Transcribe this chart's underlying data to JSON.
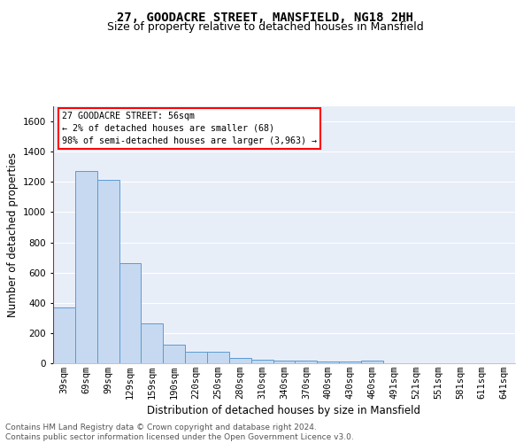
{
  "title": "27, GOODACRE STREET, MANSFIELD, NG18 2HH",
  "subtitle": "Size of property relative to detached houses in Mansfield",
  "xlabel": "Distribution of detached houses by size in Mansfield",
  "ylabel": "Number of detached properties",
  "categories": [
    "39sqm",
    "69sqm",
    "99sqm",
    "129sqm",
    "159sqm",
    "190sqm",
    "220sqm",
    "250sqm",
    "280sqm",
    "310sqm",
    "340sqm",
    "370sqm",
    "400sqm",
    "430sqm",
    "460sqm",
    "491sqm",
    "521sqm",
    "551sqm",
    "581sqm",
    "611sqm",
    "641sqm"
  ],
  "values": [
    370,
    1270,
    1215,
    665,
    265,
    125,
    75,
    75,
    35,
    22,
    18,
    15,
    13,
    12,
    20,
    0,
    0,
    0,
    0,
    0,
    0
  ],
  "bar_color": "#c6d9f0",
  "bar_edge_color": "#5b9bd5",
  "annotation_lines": [
    "27 GOODACRE STREET: 56sqm",
    "← 2% of detached houses are smaller (68)",
    "98% of semi-detached houses are larger (3,963) →"
  ],
  "ylim": [
    0,
    1700
  ],
  "yticks": [
    0,
    200,
    400,
    600,
    800,
    1000,
    1200,
    1400,
    1600
  ],
  "footer_line1": "Contains HM Land Registry data © Crown copyright and database right 2024.",
  "footer_line2": "Contains public sector information licensed under the Open Government Licence v3.0.",
  "background_color": "#e8eef8",
  "grid_color": "#ffffff",
  "title_fontsize": 10,
  "subtitle_fontsize": 9,
  "axis_label_fontsize": 8.5,
  "tick_fontsize": 7.5,
  "footer_fontsize": 6.5,
  "red_line_index": 0.5
}
